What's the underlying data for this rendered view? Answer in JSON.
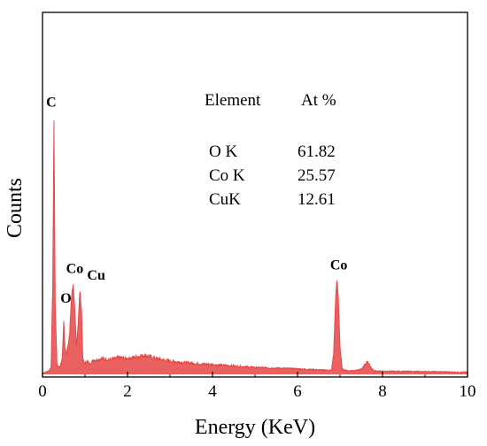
{
  "chart_data": {
    "type": "area",
    "title": "",
    "xlabel": "Energy (KeV)",
    "ylabel": "Counts",
    "xlim": [
      0,
      10
    ],
    "ylim": [
      0,
      100
    ],
    "x_ticks": [
      "0",
      "2",
      "4",
      "6",
      "8",
      "10"
    ],
    "y_ticks_labeled": false,
    "grid": false,
    "legend": "none",
    "series_color": "#e64545",
    "series": [
      {
        "x": [
          0,
          0.05,
          0.1,
          0.15,
          0.2,
          0.24,
          0.27,
          0.3,
          0.34,
          0.38,
          0.42,
          0.46,
          0.5,
          0.53,
          0.56,
          0.6,
          0.64,
          0.68,
          0.72,
          0.76,
          0.8,
          0.84,
          0.88,
          0.92,
          0.95,
          1.0,
          1.05,
          1.1,
          1.2,
          1.4,
          1.6,
          1.8,
          2.0,
          2.2,
          2.4,
          2.6,
          2.8,
          3.0,
          3.5,
          4.0,
          4.5,
          5.0,
          5.5,
          6.0,
          6.5,
          6.8,
          6.85,
          6.9,
          6.93,
          6.96,
          7.0,
          7.05,
          7.2,
          7.5,
          7.6,
          7.65,
          7.7,
          7.8,
          8.0,
          9.0,
          10.0
        ],
        "y": [
          0.5,
          0.5,
          0.8,
          1.0,
          2,
          25,
          73,
          20,
          3,
          2,
          2.5,
          4,
          15,
          8,
          6,
          8,
          12,
          22,
          26,
          18,
          8,
          15,
          24,
          18,
          4,
          3,
          4,
          3,
          4,
          4.5,
          4.2,
          4.8,
          4.5,
          5.0,
          5.5,
          4.8,
          4.2,
          3.8,
          3.2,
          2.8,
          2.4,
          2.0,
          1.8,
          1.6,
          1.3,
          1.2,
          6,
          23,
          27,
          22,
          8,
          1.5,
          1.0,
          1.4,
          3.0,
          3.8,
          2.5,
          1.0,
          0.9,
          0.8,
          0.6
        ]
      }
    ],
    "peak_labels": [
      {
        "label": "C",
        "x": 0.27,
        "y": 73
      },
      {
        "label": "O",
        "x": 0.53,
        "y": 15
      },
      {
        "label": "Co",
        "x": 0.78,
        "y": 26
      },
      {
        "label": "Cu",
        "x": 0.93,
        "y": 24
      },
      {
        "label": "Co",
        "x": 6.93,
        "y": 27
      }
    ],
    "inset_table": {
      "headers": [
        "Element",
        "At %"
      ],
      "rows": [
        [
          "O K",
          "61.82"
        ],
        [
          "Co K",
          "25.57"
        ],
        [
          "CuK",
          "12.61"
        ]
      ]
    }
  }
}
